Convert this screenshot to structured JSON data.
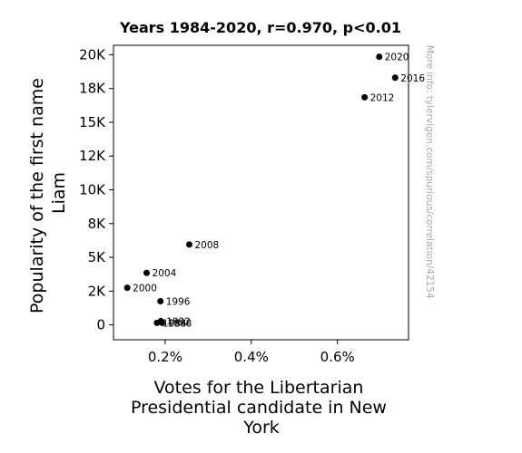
{
  "chart_data": {
    "type": "scatter",
    "title": "Years 1984-2020, r=0.970, p<0.01",
    "xlabel_lines": [
      "Votes for the Libertarian",
      "Presidential candidate in New",
      "York"
    ],
    "ylabel_lines": [
      "Popularity of the first name",
      "Liam"
    ],
    "x_unit": "percent",
    "xlim": [
      0.08,
      0.765
    ],
    "ylim": [
      -1100,
      20700
    ],
    "x_ticks": [
      {
        "value": 0.2,
        "label": "0.2%"
      },
      {
        "value": 0.4,
        "label": "0.4%"
      },
      {
        "value": 0.6,
        "label": "0.6%"
      }
    ],
    "y_ticks": [
      {
        "value": 0,
        "label": "0"
      },
      {
        "value": 2500,
        "label": "2K"
      },
      {
        "value": 5000,
        "label": "5K"
      },
      {
        "value": 7500,
        "label": "8K"
      },
      {
        "value": 10000,
        "label": "10K"
      },
      {
        "value": 12500,
        "label": "12K"
      },
      {
        "value": 15000,
        "label": "15K"
      },
      {
        "value": 17500,
        "label": "18K"
      },
      {
        "value": 20000,
        "label": "20K"
      }
    ],
    "points": [
      {
        "label": "1984",
        "x": 0.181,
        "y": 150
      },
      {
        "label": "1988",
        "x": 0.193,
        "y": 150
      },
      {
        "label": "1992",
        "x": 0.19,
        "y": 280
      },
      {
        "label": "1996",
        "x": 0.189,
        "y": 1750
      },
      {
        "label": "2000",
        "x": 0.112,
        "y": 2750
      },
      {
        "label": "2004",
        "x": 0.157,
        "y": 3850
      },
      {
        "label": "2008",
        "x": 0.256,
        "y": 5950
      },
      {
        "label": "2012",
        "x": 0.663,
        "y": 16850
      },
      {
        "label": "2016",
        "x": 0.734,
        "y": 18300
      },
      {
        "label": "2020",
        "x": 0.697,
        "y": 19850
      }
    ],
    "grid": false,
    "legend": "none",
    "marker_color": "#000000"
  },
  "watermark": "More info: tylervigen.com/spurious/correlation/42154"
}
